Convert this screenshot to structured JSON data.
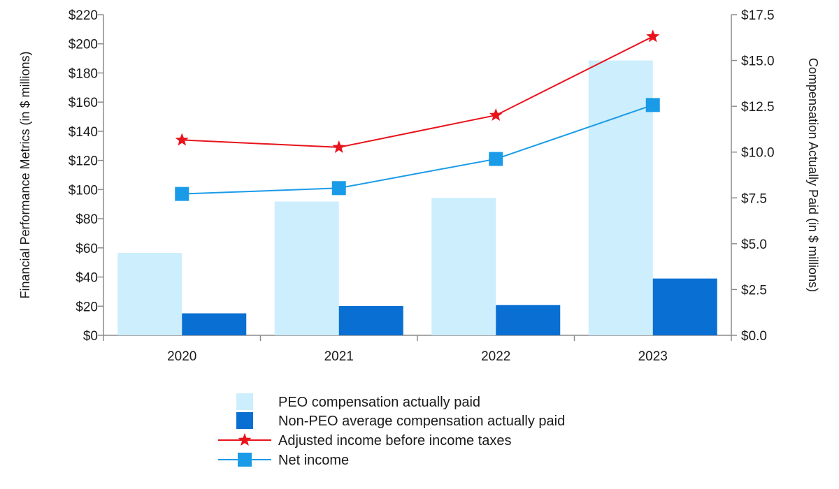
{
  "chart_data": {
    "type": "bar+line",
    "categories": [
      "2020",
      "2021",
      "2022",
      "2023"
    ],
    "left_axis": {
      "label": "Financial Performance Metrics (in $ millions)",
      "ylim": [
        0,
        220
      ],
      "ticks": [
        0,
        20,
        40,
        60,
        80,
        100,
        120,
        140,
        160,
        180,
        200,
        220
      ],
      "tick_labels": [
        "$0",
        "$20",
        "$40",
        "$60",
        "$80",
        "$100",
        "$120",
        "$140",
        "$160",
        "$180",
        "$200",
        "$220"
      ]
    },
    "right_axis": {
      "label": "Compensation Actually Paid (in $ millions)",
      "ylim": [
        0,
        17.5
      ],
      "ticks": [
        0,
        2.5,
        5,
        7.5,
        10,
        12.5,
        15,
        17.5
      ],
      "tick_labels": [
        "$0.0",
        "$2.5",
        "$5.0",
        "$7.5",
        "$10.0",
        "$12.5",
        "$15.0",
        "$17.5"
      ]
    },
    "series": [
      {
        "name": "PEO compensation actually paid",
        "kind": "bar",
        "axis": "right",
        "color": "#cdeefc",
        "values": [
          4.5,
          7.3,
          7.5,
          15.0
        ]
      },
      {
        "name": "Non-PEO average compensation actually paid",
        "kind": "bar",
        "axis": "right",
        "color": "#0a6fd2",
        "values": [
          1.2,
          1.6,
          1.65,
          3.1
        ]
      },
      {
        "name": "Adjusted income before income taxes",
        "kind": "line",
        "axis": "left",
        "marker": "star",
        "color": "#e8131b",
        "values": [
          134,
          129,
          151,
          205
        ]
      },
      {
        "name": "Net income",
        "kind": "line",
        "axis": "left",
        "marker": "square",
        "color": "#1a9be8",
        "values": [
          97,
          101,
          121,
          158
        ]
      }
    ]
  }
}
